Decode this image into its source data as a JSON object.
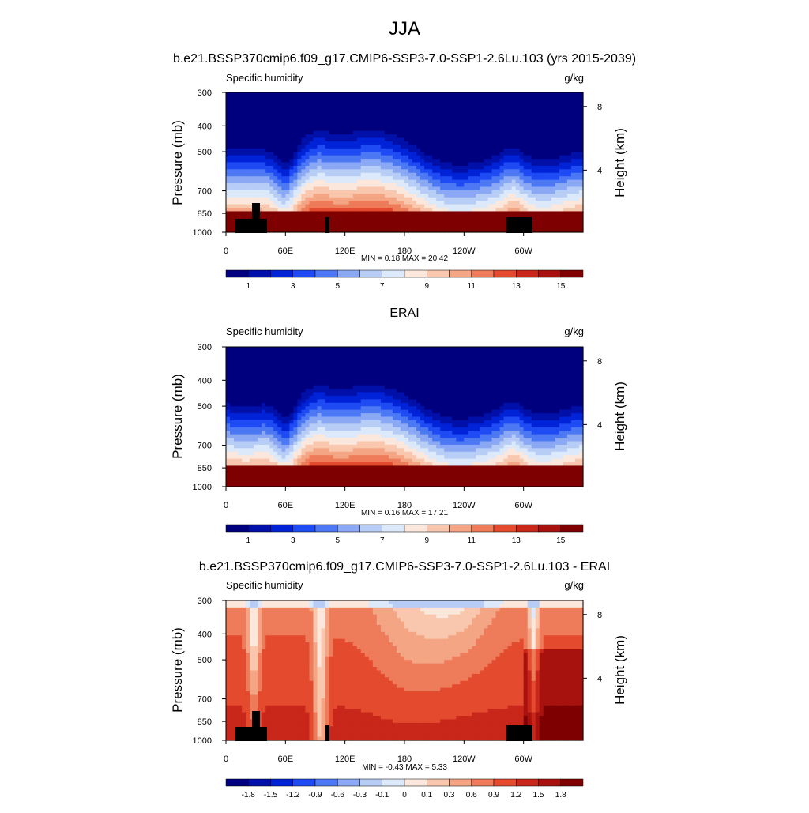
{
  "main_title": "JJA",
  "chart_data": [
    {
      "type": "heatmap",
      "title": "b.e21.BSSP370cmip6.f09_g17.CMIP6-SSP3-7.0-SSP1-2.6Lu.103 (yrs 2015-2039)",
      "variable": "Specific humidity",
      "units": "g/kg",
      "ylabel": "Pressure (mb)",
      "ylabel_right": "Height (km)",
      "x_ticks": [
        "0",
        "60E",
        "120E",
        "180",
        "120W",
        "60W"
      ],
      "y_ticks": [
        "300",
        "400",
        "500",
        "700",
        "850",
        "1000"
      ],
      "right_ticks": [
        "8",
        "4"
      ],
      "stats": "MIN =   0.18  MAX =  20.42",
      "min": 0.18,
      "max": 20.42,
      "colorbar_labels": [
        "1",
        "3",
        "5",
        "7",
        "9",
        "11",
        "13",
        "15"
      ],
      "colors": [
        "#00007f",
        "#0010a8",
        "#0023d8",
        "#1f4bf4",
        "#4d78f4",
        "#8aa8f4",
        "#b7cdf6",
        "#dce9fb",
        "#fbe7dc",
        "#f8c7ae",
        "#f4a584",
        "#ee7b5a",
        "#e34a2e",
        "#c9271a",
        "#a8120e",
        "#7f0000"
      ],
      "kind": "full"
    },
    {
      "type": "heatmap",
      "title": "ERAI",
      "variable": "Specific humidity",
      "units": "g/kg",
      "ylabel": "Pressure (mb)",
      "ylabel_right": "Height (km)",
      "x_ticks": [
        "0",
        "60E",
        "120E",
        "180",
        "120W",
        "60W"
      ],
      "y_ticks": [
        "300",
        "400",
        "500",
        "700",
        "850",
        "1000"
      ],
      "right_ticks": [
        "8",
        "4"
      ],
      "stats": "MIN =   0.16  MAX =  17.21",
      "min": 0.16,
      "max": 17.21,
      "colorbar_labels": [
        "1",
        "3",
        "5",
        "7",
        "9",
        "11",
        "13",
        "15"
      ],
      "colors": [
        "#00007f",
        "#0010a8",
        "#0023d8",
        "#1f4bf4",
        "#4d78f4",
        "#8aa8f4",
        "#b7cdf6",
        "#dce9fb",
        "#fbe7dc",
        "#f8c7ae",
        "#f4a584",
        "#ee7b5a",
        "#e34a2e",
        "#c9271a",
        "#a8120e",
        "#7f0000"
      ],
      "kind": "full"
    },
    {
      "type": "heatmap",
      "title": "b.e21.BSSP370cmip6.f09_g17.CMIP6-SSP3-7.0-SSP1-2.6Lu.103 - ERAI",
      "variable": "Specific humidity",
      "units": "g/kg",
      "ylabel": "Pressure (mb)",
      "ylabel_right": "Height (km)",
      "x_ticks": [
        "0",
        "60E",
        "120E",
        "180",
        "120W",
        "60W"
      ],
      "y_ticks": [
        "300",
        "400",
        "500",
        "700",
        "850",
        "1000"
      ],
      "right_ticks": [
        "8",
        "4"
      ],
      "stats": "MIN =  -0.43  MAX =   5.33",
      "min": -0.43,
      "max": 5.33,
      "colorbar_labels": [
        "-1.8",
        "-1.5",
        "-1.2",
        "-0.9",
        "-0.6",
        "-0.3",
        "-0.1",
        "0",
        "0.1",
        "0.3",
        "0.6",
        "0.9",
        "1.2",
        "1.5",
        "1.8"
      ],
      "colors": [
        "#00007f",
        "#0010a8",
        "#0023d8",
        "#1f4bf4",
        "#4d78f4",
        "#8aa8f4",
        "#b7cdf6",
        "#dce9fb",
        "#fbe7dc",
        "#f8c7ae",
        "#f4a584",
        "#ee7b5a",
        "#e34a2e",
        "#c9271a",
        "#a8120e",
        "#7f0000"
      ],
      "kind": "diff"
    }
  ]
}
